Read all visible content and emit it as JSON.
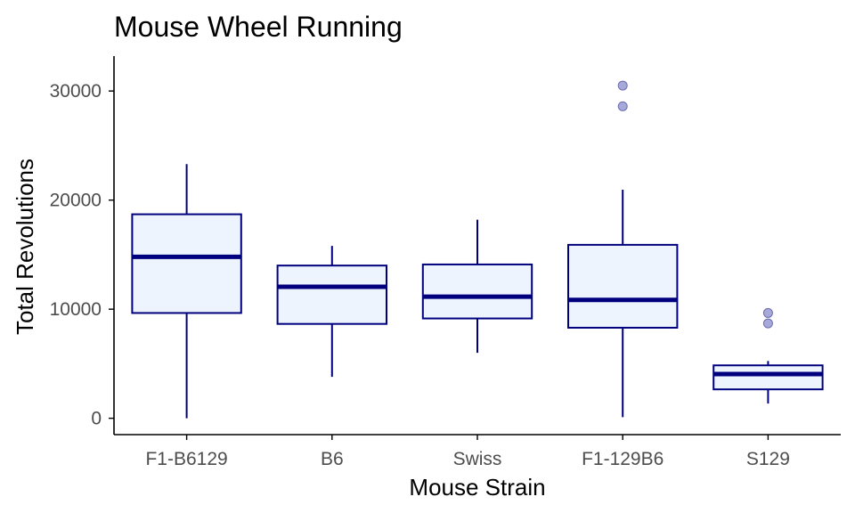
{
  "chart_data": {
    "type": "boxplot",
    "title": "Mouse Wheel Running",
    "xlabel": "Mouse Strain",
    "ylabel": "Total Revolutions",
    "ylim": [
      -1500,
      33200
    ],
    "yticks": [
      0,
      10000,
      20000,
      30000
    ],
    "ytick_labels": [
      "0",
      "10000",
      "20000",
      "30000"
    ],
    "categories": [
      "F1-B6129",
      "B6",
      "Swiss",
      "F1-129B6",
      "S129"
    ],
    "boxes": [
      {
        "name": "F1-B6129",
        "whisker_low": 0,
        "q1": 9650,
        "median": 14800,
        "q3": 18700,
        "whisker_high": 23300,
        "outliers": []
      },
      {
        "name": "B6",
        "whisker_low": 3800,
        "q1": 8650,
        "median": 12050,
        "q3": 14000,
        "whisker_high": 15800,
        "outliers": []
      },
      {
        "name": "Swiss",
        "whisker_low": 6000,
        "q1": 9150,
        "median": 11150,
        "q3": 14100,
        "whisker_high": 18200,
        "outliers": []
      },
      {
        "name": "F1-129B6",
        "whisker_low": 100,
        "q1": 8300,
        "median": 10850,
        "q3": 15900,
        "whisker_high": 20950,
        "outliers": [
          28600,
          30500
        ]
      },
      {
        "name": "S129",
        "whisker_low": 1350,
        "q1": 2650,
        "median": 4050,
        "q3": 4850,
        "whisker_high": 5250,
        "outliers": [
          8700,
          9650
        ]
      }
    ],
    "colors": {
      "box_fill": "#eef4fe",
      "box_line": "#00007f",
      "outlier_fill": "#a7a9d8",
      "outlier_line": "#6a6cb0",
      "axis": "#000000",
      "tick_text": "#4d4d4d"
    }
  }
}
